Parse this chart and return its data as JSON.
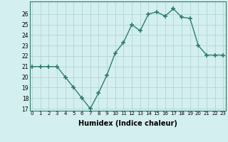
{
  "x": [
    0,
    1,
    2,
    3,
    4,
    5,
    6,
    7,
    8,
    9,
    10,
    11,
    12,
    13,
    14,
    15,
    16,
    17,
    18,
    19,
    20,
    21,
    22,
    23
  ],
  "y": [
    21,
    21,
    21,
    21,
    20,
    19,
    18,
    17,
    18.5,
    20.2,
    22.3,
    23.3,
    25.0,
    24.4,
    26.0,
    26.2,
    25.8,
    26.5,
    25.7,
    25.6,
    23.0,
    22.1,
    22.1,
    22.1
  ],
  "xlabel": "Humidex (Indice chaleur)",
  "ylim": [
    17,
    27
  ],
  "yticks": [
    17,
    18,
    19,
    20,
    21,
    22,
    23,
    24,
    25,
    26
  ],
  "xticks": [
    0,
    1,
    2,
    3,
    4,
    5,
    6,
    7,
    8,
    9,
    10,
    11,
    12,
    13,
    14,
    15,
    16,
    17,
    18,
    19,
    20,
    21,
    22,
    23
  ],
  "xlim": [
    -0.3,
    23.3
  ],
  "line_color": "#2e7d6e",
  "marker": "+",
  "marker_size": 5,
  "linewidth": 1.0,
  "background_color": "#d4efef",
  "grid_color": "#b8d8d8",
  "xlabel_fontsize": 7,
  "tick_fontsize": 5,
  "ytick_fontsize": 5.5
}
